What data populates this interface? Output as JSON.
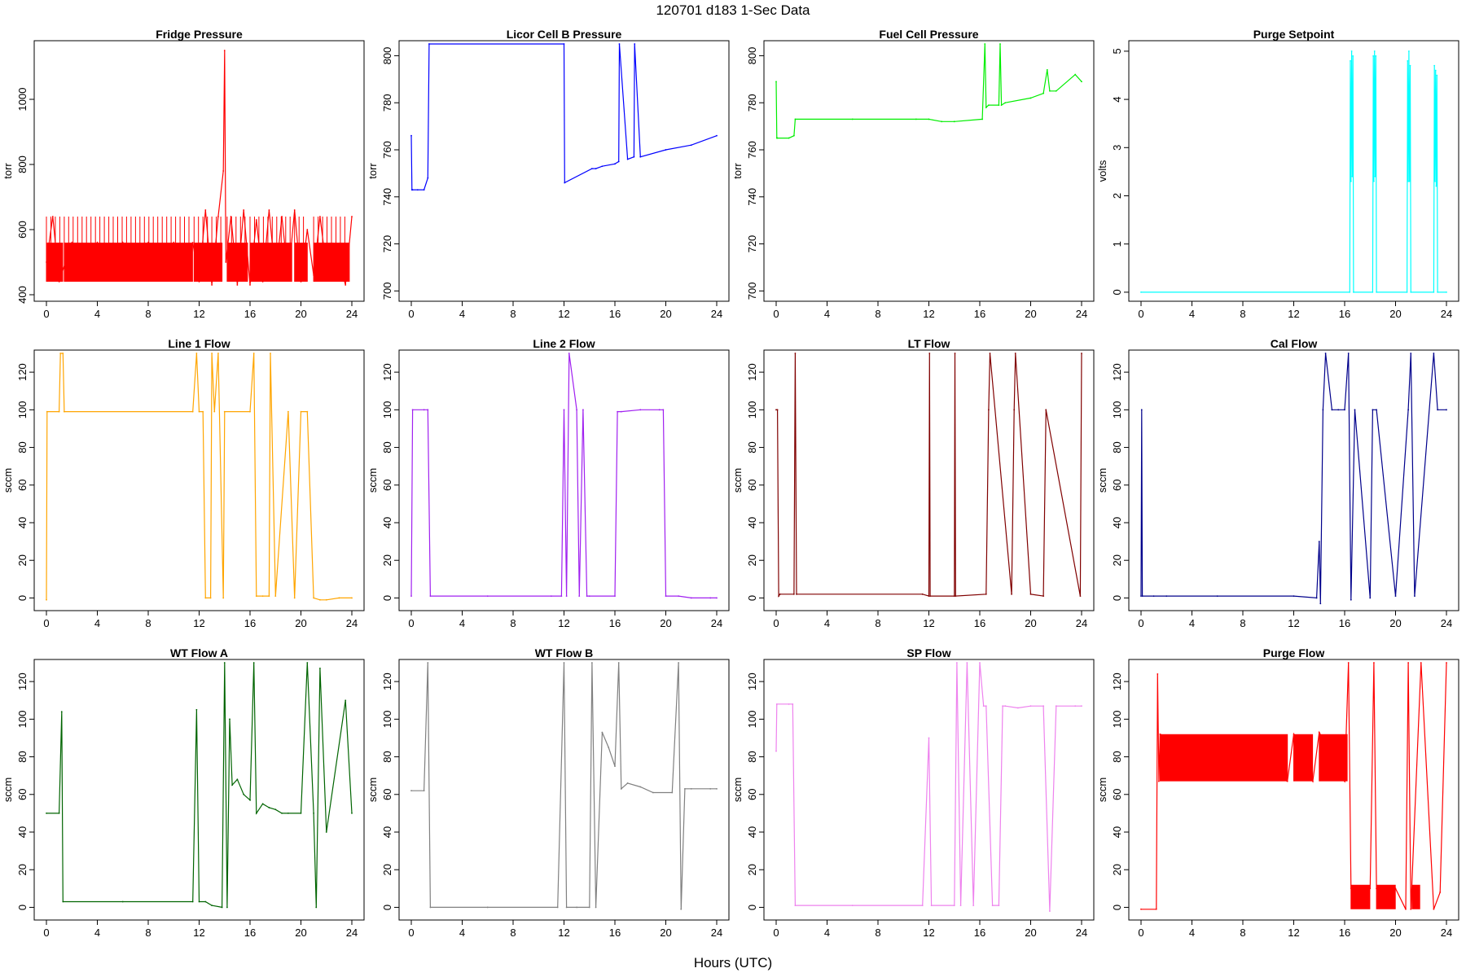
{
  "figure": {
    "title": "120701    d183    1-Sec Data",
    "xlabel": "Hours (UTC)"
  },
  "chart_data": [
    {
      "type": "line",
      "title": "Fridge Pressure",
      "ylabel": "torr",
      "color": "#ff0000",
      "xlim": [
        0,
        24
      ],
      "ylim": [
        390,
        1170
      ],
      "yticks": [
        400,
        600,
        800,
        1000
      ],
      "x": [
        0,
        0.5,
        1,
        2,
        3,
        4,
        5,
        6,
        7,
        8,
        9,
        10,
        11,
        11.5,
        12,
        12.5,
        13,
        13.5,
        13.9,
        14,
        14.1,
        14.5,
        15,
        15.5,
        16,
        16.5,
        17,
        17.5,
        18,
        18.5,
        19,
        19.5,
        20,
        20.5,
        21,
        21.5,
        22,
        23,
        23.5,
        24
      ],
      "y": [
        500,
        640,
        440,
        560,
        450,
        560,
        460,
        560,
        450,
        560,
        460,
        560,
        450,
        560,
        440,
        660,
        430,
        640,
        780,
        1150,
        500,
        640,
        430,
        660,
        430,
        630,
        440,
        660,
        450,
        640,
        450,
        660,
        440,
        600,
        460,
        640,
        480,
        500,
        430,
        640
      ],
      "y_lo": 440,
      "y_hi": 560,
      "y_spike": 640
    },
    {
      "type": "line",
      "title": "Licor Cell B Pressure",
      "ylabel": "torr",
      "color": "#0000ff",
      "xlim": [
        0,
        24
      ],
      "ylim": [
        697,
        805
      ],
      "yticks": [
        700,
        720,
        740,
        760,
        780,
        800
      ],
      "x": [
        0,
        0.05,
        0.1,
        0.5,
        1,
        1.3,
        1.4,
        12,
        12.05,
        14.2,
        14.5,
        15,
        16,
        16.3,
        16.35,
        17,
        17.5,
        17.55,
        18,
        20,
        22,
        24
      ],
      "y": [
        766,
        743,
        743,
        743,
        743,
        748,
        805,
        805,
        746,
        752,
        752,
        753,
        754,
        755,
        805,
        756,
        757,
        805,
        757,
        760,
        762,
        766
      ]
    },
    {
      "type": "line",
      "title": "Fuel Cell Pressure",
      "ylabel": "torr",
      "color": "#00ee00",
      "xlim": [
        0,
        24
      ],
      "ylim": [
        697,
        805
      ],
      "yticks": [
        700,
        720,
        740,
        760,
        780,
        800
      ],
      "x": [
        0,
        0.05,
        0.1,
        1,
        1.4,
        1.5,
        6,
        11,
        12,
        13,
        14,
        16.2,
        16.4,
        16.5,
        16.7,
        17.5,
        17.6,
        17.7,
        18,
        20,
        21,
        21.3,
        21.5,
        22,
        23.5,
        24
      ],
      "y": [
        789,
        765,
        765,
        765,
        766,
        773,
        773,
        773,
        773,
        772,
        772,
        773,
        805,
        778,
        779,
        779,
        805,
        779,
        780,
        782,
        784,
        794,
        785,
        785,
        792,
        789
      ]
    },
    {
      "type": "line",
      "title": "Purge Setpoint",
      "ylabel": "volts",
      "color": "#00ffff",
      "xlim": [
        0,
        24
      ],
      "ylim": [
        -0.12,
        5.15
      ],
      "yticks": [
        0,
        1,
        2,
        3,
        4,
        5
      ],
      "x": [
        0,
        16.4,
        16.45,
        16.5,
        16.55,
        16.6,
        16.65,
        16.7,
        18.2,
        18.25,
        18.3,
        18.35,
        18.4,
        18.45,
        18.5,
        20.9,
        20.95,
        21.0,
        21.05,
        21.1,
        21.15,
        21.2,
        23.0,
        23.05,
        23.1,
        23.15,
        23.2,
        23.25,
        23.3,
        24
      ],
      "y": [
        0,
        0,
        4.8,
        2.3,
        5.0,
        2.4,
        4.9,
        0,
        0,
        4.9,
        2.3,
        5.0,
        2.4,
        4.9,
        0,
        0,
        4.8,
        2.3,
        5.0,
        2.3,
        4.7,
        0,
        0,
        4.7,
        2.3,
        4.6,
        2.2,
        4.5,
        0,
        0
      ]
    },
    {
      "type": "line",
      "title": "Line 1 Flow",
      "ylabel": "sccm",
      "color": "#ffa500",
      "xlim": [
        0,
        24
      ],
      "ylim": [
        -5,
        130
      ],
      "yticks": [
        0,
        20,
        40,
        60,
        80,
        100,
        120
      ],
      "x": [
        0,
        0.05,
        1,
        1.1,
        1.3,
        1.4,
        11.5,
        11.8,
        12,
        12.3,
        12.5,
        12.9,
        13,
        13.2,
        13.5,
        13.9,
        14,
        16,
        16.3,
        16.5,
        17,
        17.5,
        17.6,
        18,
        19,
        19.5,
        20,
        20.5,
        21,
        21.5,
        22,
        23,
        24
      ],
      "y": [
        -1,
        99,
        99,
        130,
        130,
        99,
        99,
        130,
        99,
        99,
        0,
        0,
        130,
        99,
        130,
        0,
        99,
        99,
        130,
        1,
        1,
        1,
        130,
        1,
        99,
        0,
        99,
        99,
        0,
        -1,
        -1,
        0,
        0
      ]
    },
    {
      "type": "line",
      "title": "Line 2 Flow",
      "ylabel": "sccm",
      "color": "#a020f0",
      "xlim": [
        0,
        24
      ],
      "ylim": [
        -5,
        130
      ],
      "yticks": [
        0,
        20,
        40,
        60,
        80,
        100,
        120
      ],
      "x": [
        0,
        0.1,
        1,
        1.3,
        1.5,
        6,
        11,
        11.8,
        12,
        12.2,
        12.4,
        13,
        13.2,
        13.5,
        13.8,
        14,
        16,
        16.2,
        16.5,
        18,
        19.5,
        19.8,
        20,
        21,
        22,
        23.5,
        24
      ],
      "y": [
        1,
        100,
        100,
        100,
        1,
        1,
        1,
        1,
        100,
        1,
        130,
        100,
        1,
        100,
        1,
        1,
        1,
        99,
        99,
        100,
        100,
        100,
        1,
        1,
        0,
        0,
        0
      ]
    },
    {
      "type": "line",
      "title": "LT Flow",
      "ylabel": "sccm",
      "color": "#800000",
      "xlim": [
        0,
        24
      ],
      "ylim": [
        -5,
        130
      ],
      "yticks": [
        0,
        20,
        40,
        60,
        80,
        100,
        120
      ],
      "x": [
        0,
        0.1,
        0.2,
        0.3,
        1.4,
        1.5,
        1.6,
        11.5,
        12,
        12.05,
        12.1,
        14,
        14.05,
        14.1,
        16.5,
        16.7,
        16.8,
        18.5,
        18.7,
        18.8,
        20,
        21,
        21.2,
        23.9,
        24
      ],
      "y": [
        100,
        100,
        1,
        2,
        2,
        130,
        2,
        2,
        1,
        130,
        1,
        1,
        130,
        1,
        2,
        100,
        130,
        2,
        100,
        130,
        2,
        1,
        100,
        1,
        130
      ]
    },
    {
      "type": "line",
      "title": "Cal Flow",
      "ylabel": "sccm",
      "color": "#00008b",
      "xlim": [
        0,
        24
      ],
      "ylim": [
        -5,
        130
      ],
      "yticks": [
        0,
        20,
        40,
        60,
        80,
        100,
        120
      ],
      "x": [
        0,
        0.05,
        0.1,
        1,
        2,
        6,
        12,
        13.8,
        14,
        14.1,
        14.3,
        14.5,
        15,
        15.5,
        16,
        16.3,
        16.5,
        16.8,
        18,
        18.2,
        18.5,
        20,
        21,
        21.2,
        21.5,
        23,
        23.3,
        24
      ],
      "y": [
        1,
        100,
        1,
        1,
        1,
        1,
        1,
        0,
        30,
        -3,
        100,
        130,
        100,
        100,
        100,
        130,
        -1,
        100,
        0,
        100,
        100,
        1,
        100,
        130,
        1,
        130,
        100,
        100
      ]
    },
    {
      "type": "line",
      "title": "WT Flow A",
      "ylabel": "sccm",
      "color": "#006400",
      "xlim": [
        0,
        24
      ],
      "ylim": [
        -5,
        130
      ],
      "yticks": [
        0,
        20,
        40,
        60,
        80,
        100,
        120
      ],
      "x": [
        0,
        1,
        1.2,
        1.3,
        6,
        11.5,
        11.8,
        12,
        12.5,
        13,
        13.8,
        14,
        14.2,
        14.4,
        14.6,
        15,
        15.5,
        16,
        16.3,
        16.5,
        17,
        17.5,
        18,
        18.5,
        19,
        20,
        20.5,
        21,
        21.2,
        21.5,
        22,
        23.5,
        24
      ],
      "y": [
        50,
        50,
        104,
        3,
        3,
        3,
        105,
        3,
        3,
        1,
        0,
        130,
        0,
        100,
        65,
        68,
        60,
        57,
        130,
        50,
        55,
        53,
        52,
        50,
        50,
        50,
        130,
        50,
        0,
        127,
        40,
        110,
        50
      ]
    },
    {
      "type": "line",
      "title": "WT Flow B",
      "ylabel": "sccm",
      "color": "#808080",
      "xlim": [
        0,
        24
      ],
      "ylim": [
        -5,
        130
      ],
      "yticks": [
        0,
        20,
        40,
        60,
        80,
        100,
        120
      ],
      "x": [
        0,
        1,
        1.3,
        1.5,
        6,
        11.5,
        12,
        12.2,
        13,
        14,
        14.2,
        14.5,
        15,
        15.5,
        16,
        16.3,
        16.5,
        17,
        18,
        19,
        20.5,
        21,
        21.2,
        21.5,
        22,
        23.5,
        24
      ],
      "y": [
        62,
        62,
        130,
        0,
        0,
        0,
        130,
        0,
        0,
        0,
        130,
        0,
        93,
        85,
        75,
        130,
        63,
        66,
        64,
        61,
        61,
        130,
        -1,
        63,
        63,
        63,
        63
      ]
    },
    {
      "type": "line",
      "title": "SP Flow",
      "ylabel": "sccm",
      "color": "#ee82ee",
      "xlim": [
        0,
        24
      ],
      "ylim": [
        -5,
        130
      ],
      "yticks": [
        0,
        20,
        40,
        60,
        80,
        100,
        120
      ],
      "x": [
        0,
        0.05,
        1,
        1.3,
        1.5,
        6,
        11.5,
        12,
        12.2,
        14,
        14.2,
        14.5,
        15,
        15.5,
        16,
        16.3,
        16.5,
        17,
        17.5,
        17.8,
        18,
        19,
        20,
        21,
        21.5,
        22,
        23.5,
        24
      ],
      "y": [
        83,
        108,
        108,
        108,
        1,
        1,
        1,
        90,
        1,
        1,
        130,
        1,
        130,
        1,
        130,
        107,
        107,
        1,
        1,
        107,
        107,
        106,
        107,
        107,
        -2,
        107,
        107,
        107
      ]
    },
    {
      "type": "line",
      "title": "Purge Flow",
      "ylabel": "sccm",
      "color": "#ff0000",
      "xlim": [
        0,
        24
      ],
      "ylim": [
        -5,
        130
      ],
      "yticks": [
        0,
        20,
        40,
        60,
        80,
        100,
        120
      ],
      "x": [
        0,
        1.2,
        1.3,
        1.4,
        1.5,
        11.5,
        12,
        13.5,
        14,
        16,
        16.3,
        16.5,
        18,
        18.3,
        18.5,
        20,
        20.8,
        21,
        21.2,
        22,
        23,
        23.5,
        24
      ],
      "y": [
        -1,
        -1,
        124,
        67,
        92,
        67,
        92,
        67,
        93,
        67,
        130,
        10,
        10,
        130,
        10,
        10,
        -1,
        130,
        -1,
        130,
        -1,
        8,
        130
      ],
      "y_lo": 67,
      "y_hi": 92
    }
  ]
}
